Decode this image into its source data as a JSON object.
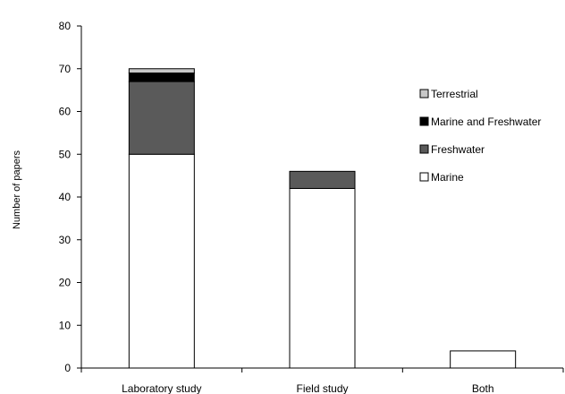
{
  "chart_data": {
    "type": "bar",
    "stacked": true,
    "title": "",
    "xlabel": "",
    "ylabel": "Number of papers",
    "ylim": [
      0,
      80
    ],
    "yticks": [
      0,
      10,
      20,
      30,
      40,
      50,
      60,
      70,
      80
    ],
    "ytick_labels": [
      "0",
      "10",
      "20",
      "30",
      "40",
      "50",
      "60",
      "70",
      "80"
    ],
    "categories": [
      "Laboratory study",
      "Field study",
      "Both"
    ],
    "series": [
      {
        "name": "Marine",
        "values": [
          50,
          42,
          4
        ],
        "color": "#ffffff"
      },
      {
        "name": "Freshwater",
        "values": [
          17,
          4,
          0
        ],
        "color": "#5a5a5a"
      },
      {
        "name": "Marine and Freshwater",
        "values": [
          2,
          0,
          0
        ],
        "color": "#000000"
      },
      {
        "name": "Terrestrial",
        "values": [
          1,
          0,
          0
        ],
        "color": "#c8c8c8"
      }
    ],
    "legend_order": [
      "Terrestrial",
      "Marine and Freshwater",
      "Freshwater",
      "Marine"
    ],
    "legend_position": "right",
    "grid": false
  }
}
